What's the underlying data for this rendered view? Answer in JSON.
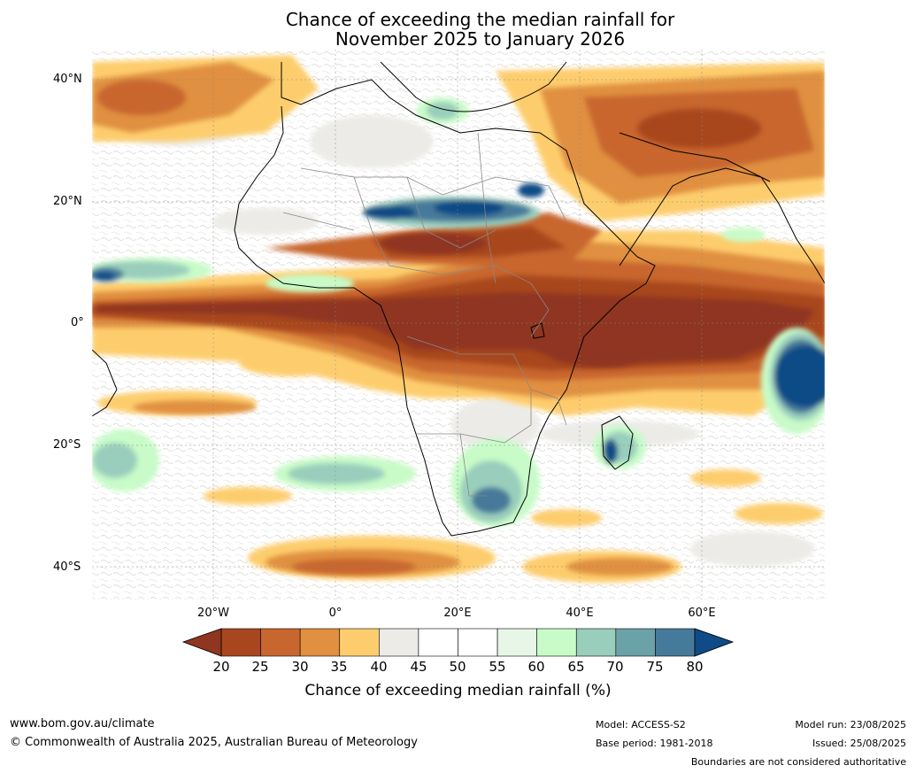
{
  "title": {
    "line1": "Chance of exceeding the median rainfall for",
    "line2": "November 2025 to January 2026"
  },
  "map": {
    "lat_labels": [
      "40°N",
      "20°N",
      "0°",
      "20°S",
      "40°S"
    ],
    "lon_labels": [
      "20°W",
      "0°",
      "20°E",
      "40°E",
      "60°E"
    ]
  },
  "colorbar": {
    "ticks": [
      "20",
      "25",
      "30",
      "35",
      "40",
      "45",
      "50",
      "55",
      "60",
      "65",
      "70",
      "75",
      "80"
    ],
    "colors": [
      "#8f3520",
      "#a8461f",
      "#c8662f",
      "#e09040",
      "#fdcd6d",
      "#ecebe7",
      "#ffffff",
      "#ffffff",
      "#e8f6e8",
      "#c8fbc8",
      "#9acebc",
      "#6aa2a8",
      "#467a9a",
      "#0f4b86"
    ],
    "label": "Chance of exceeding median rainfall (%)"
  },
  "footer": {
    "website": "www.bom.gov.au/climate",
    "copyright": "© Commonwealth of Australia 2025, Australian Bureau of Meteorology",
    "model": "Model: ACCESS-S2",
    "base_period": "Base period: 1981-2018",
    "model_run": "Model run: 23/08/2025",
    "issued": "Issued: 25/08/2025",
    "disclaimer": "Boundaries are not considered authoritative"
  }
}
